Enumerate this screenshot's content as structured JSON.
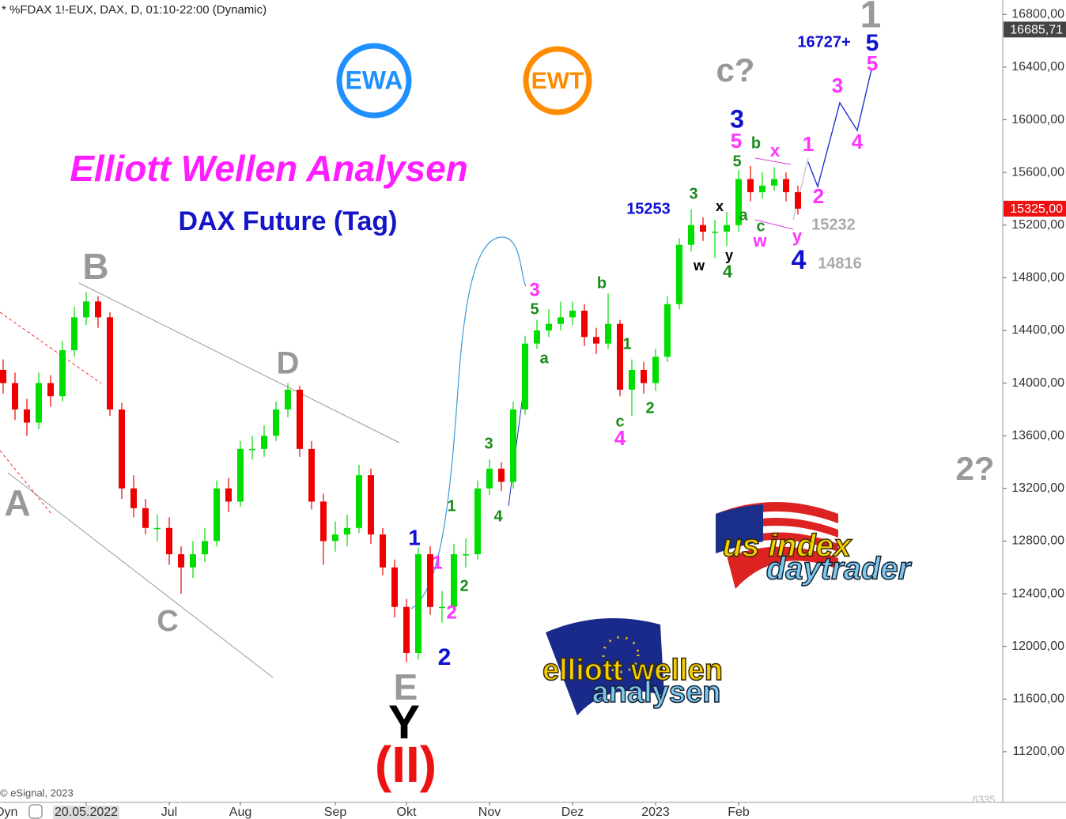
{
  "chart_data": {
    "type": "candlestick",
    "header": "* %FDAX 1!-EUX, DAX, D, 01:10-22:00 (Dynamic)",
    "title": "Elliott Wellen Analysen",
    "subtitle": "DAX Future (Tag)",
    "copyright": "© eSignal, 2023",
    "corner_label": "Dyn",
    "categories": [
      null,
      null,
      null,
      null,
      null,
      null,
      null,
      null,
      null,
      null,
      null,
      null,
      null,
      null,
      null,
      null,
      null,
      null,
      null,
      null,
      null,
      null,
      null,
      null,
      null,
      null,
      null,
      null,
      null,
      null,
      null,
      null,
      null,
      null,
      null,
      null,
      null,
      null,
      null,
      null,
      null,
      null,
      null,
      null,
      null,
      null,
      null,
      null,
      null,
      null,
      null,
      null,
      null,
      null,
      null,
      null,
      null,
      null,
      null,
      null,
      null,
      null,
      null,
      null,
      null,
      null,
      null,
      null
    ],
    "open": [
      14100,
      14000,
      13800,
      13700,
      14000,
      13900,
      14250,
      14500,
      14620,
      14500,
      13800,
      13200,
      13050,
      12900,
      12900,
      12700,
      12600,
      12700,
      12800,
      13200,
      13100,
      13500,
      13500,
      13600,
      13800,
      13950,
      13500,
      13100,
      12800,
      12850,
      12900,
      13300,
      12850,
      12600,
      12300,
      11950,
      12700,
      12300,
      12300,
      12700,
      12700,
      13200,
      13350,
      13250,
      13800,
      14300,
      14400,
      14450,
      14500,
      14550,
      14350,
      14300,
      14450,
      13950,
      14100,
      14000,
      14200,
      14600,
      15050,
      15200,
      15150,
      15150,
      15200,
      15550,
      15450,
      15500,
      15550,
      15450
    ],
    "high": [
      14180,
      14080,
      13880,
      14080,
      14060,
      14320,
      14580,
      14690,
      14660,
      14540,
      13850,
      13300,
      13120,
      13000,
      12980,
      12760,
      12800,
      12900,
      13260,
      13280,
      13560,
      13600,
      13680,
      13860,
      14000,
      13980,
      13560,
      13160,
      12950,
      13000,
      13380,
      13350,
      12900,
      12660,
      12360,
      12750,
      12760,
      12420,
      12780,
      12820,
      13260,
      13420,
      13400,
      13860,
      14360,
      14480,
      14560,
      14620,
      14620,
      14600,
      14420,
      14680,
      14480,
      14180,
      14160,
      14260,
      14660,
      15100,
      15320,
      15260,
      15240,
      15300,
      15620,
      15650,
      15600,
      15640,
      15600,
      15500
    ],
    "low": [
      13920,
      13720,
      13600,
      13650,
      13820,
      13860,
      14200,
      14440,
      14420,
      13750,
      13120,
      12980,
      12850,
      12800,
      12620,
      12400,
      12520,
      12640,
      12760,
      13020,
      13060,
      13420,
      13440,
      13560,
      13740,
      13440,
      13040,
      12620,
      12720,
      12760,
      12860,
      12780,
      12540,
      12220,
      11880,
      11900,
      12240,
      12180,
      12250,
      12600,
      12660,
      13150,
      13180,
      13200,
      13760,
      14260,
      14350,
      14400,
      14440,
      14280,
      14220,
      14260,
      13900,
      13750,
      13920,
      13940,
      14160,
      14560,
      15000,
      15080,
      14950,
      15040,
      15150,
      15380,
      15400,
      15460,
      15380,
      15280
    ],
    "close": [
      14000,
      13800,
      13700,
      14000,
      13900,
      14250,
      14500,
      14620,
      14500,
      13800,
      13200,
      13050,
      12900,
      12900,
      12700,
      12600,
      12700,
      12800,
      13200,
      13100,
      13500,
      13500,
      13600,
      13800,
      13950,
      13500,
      13100,
      12800,
      12850,
      12900,
      13300,
      12850,
      12600,
      12300,
      11950,
      12700,
      12300,
      12300,
      12700,
      12700,
      13200,
      13350,
      13250,
      13800,
      14300,
      14400,
      14450,
      14500,
      14550,
      14350,
      14300,
      14450,
      13950,
      14100,
      14000,
      14200,
      14600,
      15050,
      15200,
      15150,
      15150,
      15200,
      15550,
      15450,
      15500,
      15550,
      15450,
      15325
    ],
    "up_color": "#00dd00",
    "down_color": "#ee0000",
    "ylim": [
      10815,
      16910
    ],
    "yticks": [
      {
        "value": 11200,
        "label": "11200,00"
      },
      {
        "value": 11600,
        "label": "11600,00"
      },
      {
        "value": 12000,
        "label": "12000,00"
      },
      {
        "value": 12400,
        "label": "12400,00"
      },
      {
        "value": 12800,
        "label": "12800,00"
      },
      {
        "value": 13200,
        "label": "13200,00"
      },
      {
        "value": 13600,
        "label": "13600,00"
      },
      {
        "value": 14000,
        "label": "14000,00"
      },
      {
        "value": 14400,
        "label": "14400,00"
      },
      {
        "value": 14800,
        "label": "14800,00"
      },
      {
        "value": 15200,
        "label": "15200,00"
      },
      {
        "value": 15600,
        "label": "15600,00"
      },
      {
        "value": 16000,
        "label": "16000,00"
      },
      {
        "value": 16400,
        "label": "16400,00"
      },
      {
        "value": 16800,
        "label": "16800,00"
      }
    ],
    "xticks": [
      {
        "value": 7,
        "label": "20.05.2022"
      },
      {
        "value": 14,
        "label": "Jul"
      },
      {
        "value": 20,
        "label": "Aug"
      },
      {
        "value": 28,
        "label": "Sep"
      },
      {
        "value": 34,
        "label": "Okt"
      },
      {
        "value": 41,
        "label": "Nov"
      },
      {
        "value": 48,
        "label": "Dez"
      },
      {
        "value": 55,
        "label": "2023"
      },
      {
        "value": 62,
        "label": "Feb"
      }
    ],
    "last_price": {
      "value": 15325,
      "label": "15325,00"
    },
    "reference_price": {
      "value": 16685.71,
      "label": "16685,71"
    },
    "bottom_tick": "6335",
    "annotations": [
      "1",
      "16727+",
      "5",
      "5",
      "c?",
      "3",
      "3",
      "5",
      "b",
      "x",
      "1",
      "4",
      "5",
      "3",
      "2",
      "15253",
      "x",
      "a",
      "c",
      "15232",
      "y",
      "w",
      "y",
      "w",
      "4",
      "4",
      "14816",
      "b",
      "3",
      "5",
      "1",
      "a",
      "2",
      "c",
      "4",
      "3",
      "2?",
      "1",
      "4",
      "1",
      "1",
      "2",
      "2",
      "2",
      "A",
      "B",
      "C",
      "D",
      "E",
      "Y",
      "(II)"
    ],
    "logos": [
      "EWA",
      "EWT",
      "us index",
      "daytrader",
      "elliott wellen",
      "analysen"
    ]
  }
}
